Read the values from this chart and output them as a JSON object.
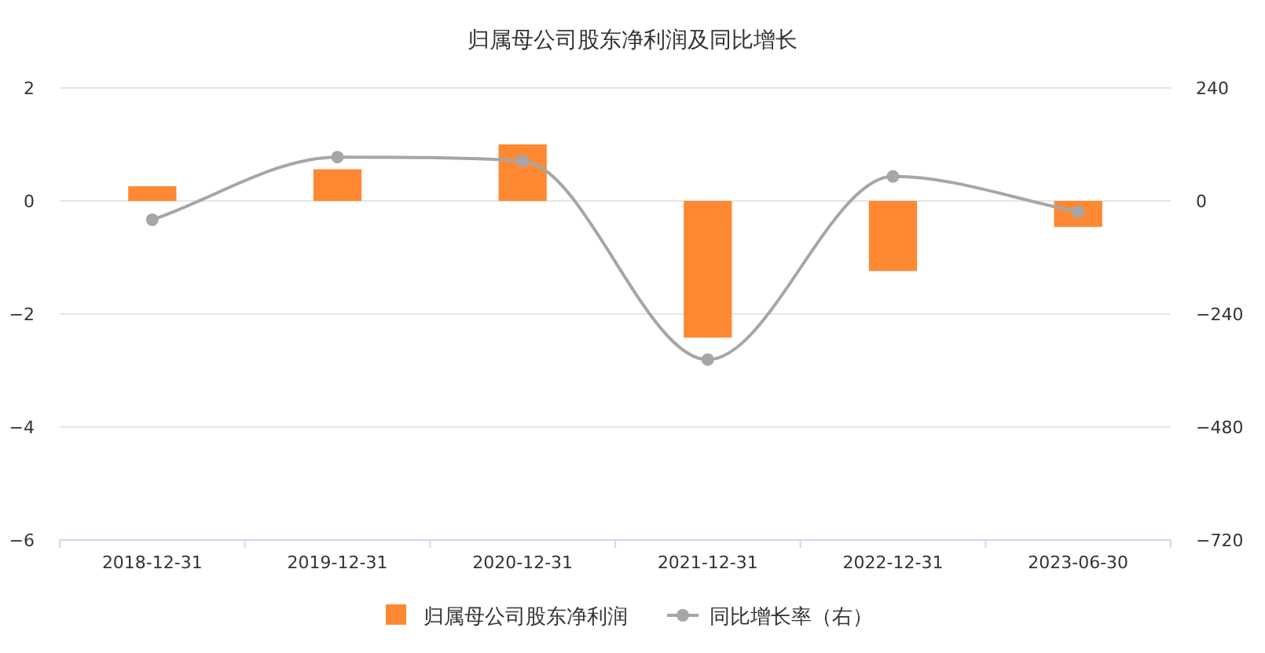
{
  "chart_data": {
    "type": "bar",
    "title": "归属母公司股东净利润及同比增长",
    "categories": [
      "2018-12-31",
      "2019-12-31",
      "2020-12-31",
      "2021-12-31",
      "2022-12-31",
      "2023-06-30"
    ],
    "series": [
      {
        "name": "归属母公司股东净利润",
        "color": "#ff8833",
        "values": [
          0.26,
          0.56,
          1.0,
          -2.42,
          -1.24,
          -0.46
        ]
      },
      {
        "name": "同比增长率（右）",
        "type": "line",
        "axis": "y2",
        "color": "#a6a6a6",
        "marker": "circle",
        "values": [
          -40,
          93,
          85,
          -337,
          52,
          -23
        ]
      }
    ],
    "ylim": [
      -6,
      2
    ],
    "yticks": [
      {
        "value": -6,
        "label": "−6"
      },
      {
        "value": -4,
        "label": "−4"
      },
      {
        "value": -2,
        "label": "−2"
      },
      0,
      2
    ],
    "y2lim": [
      -720,
      240
    ],
    "y2ticks": [
      {
        "value": -720,
        "label": "−720"
      },
      {
        "value": -480,
        "label": "−480"
      },
      {
        "value": -240,
        "label": "−240"
      },
      0,
      240
    ],
    "grid": "y",
    "legend": "bottom"
  }
}
